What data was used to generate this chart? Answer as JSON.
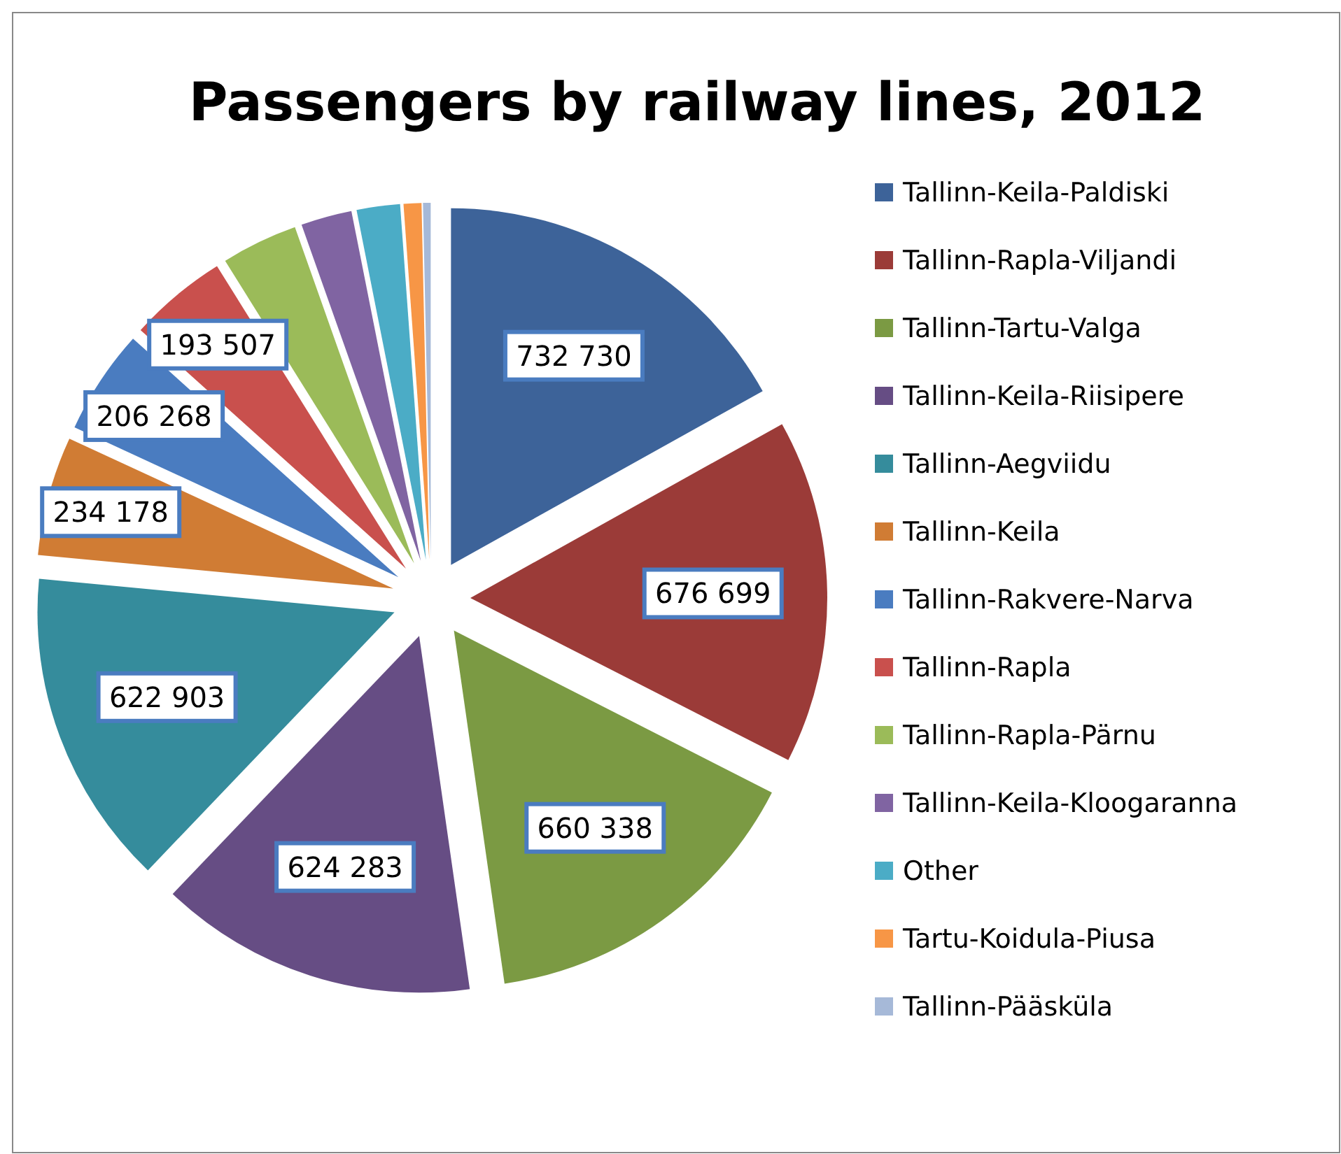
{
  "chart_data": {
    "type": "pie",
    "title": "Passengers by railway lines, 2012",
    "categories": [
      "Tallinn-Keila-Paldiski",
      "Tallinn-Rapla-Viljandi",
      "Tallinn-Tartu-Valga",
      "Tallinn-Keila-Riisipere",
      "Tallinn-Aegviidu",
      "Tallinn-Keila",
      "Tallinn-Rakvere-Narva",
      "Tallinn-Rapla",
      "Tallinn-Rapla-Pärnu",
      "Tallinn-Keila-Kloogaranna",
      "Other",
      "Tartu-Koidula-Piusa",
      "Tallinn-Pääsküla"
    ],
    "values": [
      732730,
      676699,
      660338,
      624283,
      622903,
      234178,
      206268,
      193507,
      150000,
      100000,
      85000,
      35000,
      15000
    ],
    "value_labels": [
      "732 730",
      "676 699",
      "660 338",
      "624 283",
      "622 903",
      "234 178",
      "206 268",
      "193 507",
      null,
      null,
      null,
      null,
      null
    ],
    "colors": [
      "#3d6399",
      "#9b3b38",
      "#7b9a43",
      "#664d84",
      "#358c9c",
      "#d07c34",
      "#4a7cc0",
      "#c9504d",
      "#9bbb59",
      "#8064a2",
      "#4bacc6",
      "#f79646",
      "#a6b9d8"
    ],
    "legend": "right"
  }
}
